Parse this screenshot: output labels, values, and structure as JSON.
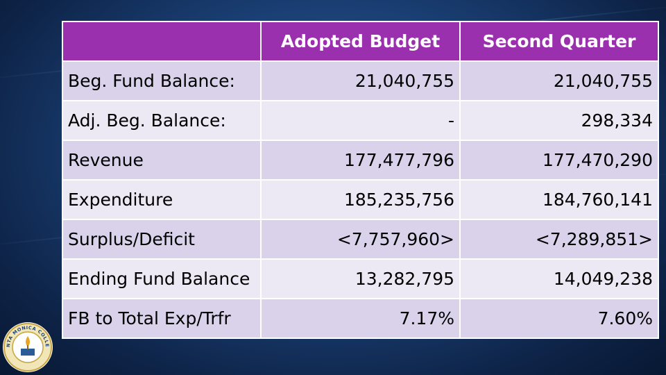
{
  "table": {
    "headers": [
      "",
      "Adopted Budget",
      "Second Quarter"
    ],
    "rows": [
      {
        "label": "Beg. Fund Balance:",
        "adopted": "21,040,755",
        "second": "21,040,755",
        "negative": false
      },
      {
        "label": "Adj. Beg. Balance:",
        "adopted": "-",
        "second": "298,334",
        "negative": false
      },
      {
        "label": "Revenue",
        "adopted": "177,477,796",
        "second": "177,470,290",
        "negative": false
      },
      {
        "label": "Expenditure",
        "adopted": "185,235,756",
        "second": "184,760,141",
        "negative": false
      },
      {
        "label": "Surplus/Deficit",
        "adopted": "<7,757,960>",
        "second": "<7,289,851>",
        "negative": true
      },
      {
        "label": "Ending Fund Balance",
        "adopted": "13,282,795",
        "second": "14,049,238",
        "negative": false
      },
      {
        "label": "FB to Total Exp/Trfr",
        "adopted": "7.17%",
        "second": "7.60%",
        "negative": false
      }
    ]
  },
  "logo": {
    "name": "college-seal-icon",
    "text": "SANTA MONICA COLLEGE"
  },
  "colors": {
    "header_bg": "#9b30ae",
    "row_odd": "#d9d2ea",
    "row_even": "#ece9f4",
    "negative": "#e00000"
  }
}
